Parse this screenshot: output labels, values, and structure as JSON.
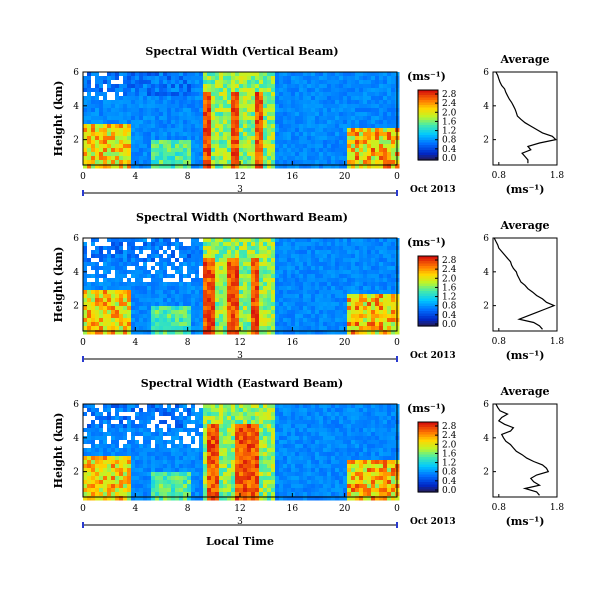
{
  "chart_data": [
    {
      "type": "heatmap",
      "title": "Spectral Width (Vertical Beam)",
      "ylabel": "Height (km)",
      "y_ticks": [
        "6",
        "4",
        "2"
      ],
      "x_ticks": [
        "0",
        "4",
        "8",
        "12",
        "16",
        "20",
        "0"
      ],
      "xlim": [
        0,
        24
      ],
      "ylim": [
        0.5,
        6
      ],
      "day_marker": "3",
      "date_label": "Oct 2013",
      "colorbar_unit": "(ms⁻¹)",
      "colorbar_ticks": [
        "2.8",
        "2.4",
        "2.0",
        "1.6",
        "1.2",
        "0.8",
        "0.4",
        "0.0"
      ],
      "colorbar_range": [
        0,
        2.8
      ],
      "band_hours": [
        9.3,
        11.5,
        13.3
      ],
      "average_profile": {
        "title": "Average",
        "xlabel": "(ms⁻¹)",
        "x_ticks": [
          "0.8",
          "1.8"
        ],
        "xlim": [
          0.7,
          1.8
        ],
        "y_ticks": [
          "6",
          "4",
          "2"
        ],
        "ylim": [
          0.5,
          6
        ],
        "height": [
          6.0,
          5.8,
          5.6,
          5.4,
          5.2,
          5.0,
          4.8,
          4.6,
          4.4,
          4.2,
          4.0,
          3.8,
          3.6,
          3.4,
          3.2,
          3.0,
          2.8,
          2.6,
          2.4,
          2.2,
          2.0,
          1.8,
          1.6,
          1.4,
          1.2,
          1.0,
          0.8,
          0.6
        ],
        "value": [
          0.75,
          0.78,
          0.8,
          0.82,
          0.85,
          0.9,
          0.92,
          0.95,
          0.98,
          1.02,
          1.05,
          1.08,
          1.1,
          1.12,
          1.18,
          1.25,
          1.35,
          1.45,
          1.55,
          1.72,
          1.78,
          1.5,
          1.3,
          1.35,
          1.2,
          1.25,
          1.3,
          1.3
        ]
      }
    },
    {
      "type": "heatmap",
      "title": "Spectral Width (Northward Beam)",
      "ylabel": "Height (km)",
      "y_ticks": [
        "6",
        "4",
        "2"
      ],
      "x_ticks": [
        "0",
        "4",
        "8",
        "12",
        "16",
        "20",
        "0"
      ],
      "xlim": [
        0,
        24
      ],
      "ylim": [
        0.5,
        6
      ],
      "day_marker": "3",
      "date_label": "Oct 2013",
      "colorbar_unit": "(ms⁻¹)",
      "colorbar_ticks": [
        "2.8",
        "2.4",
        "2.0",
        "1.6",
        "1.2",
        "0.8",
        "0.4",
        "0.0"
      ],
      "colorbar_range": [
        0,
        2.8
      ],
      "band_hours": [
        9.5,
        11.3,
        13.0
      ],
      "average_profile": {
        "title": "Average",
        "xlabel": "(ms⁻¹)",
        "x_ticks": [
          "0.8",
          "1.8"
        ],
        "xlim": [
          0.7,
          1.8
        ],
        "y_ticks": [
          "6",
          "4",
          "2"
        ],
        "ylim": [
          0.5,
          6
        ],
        "height": [
          6.0,
          5.8,
          5.6,
          5.4,
          5.2,
          5.0,
          4.8,
          4.6,
          4.4,
          4.2,
          4.0,
          3.8,
          3.6,
          3.4,
          3.2,
          3.0,
          2.8,
          2.6,
          2.4,
          2.2,
          2.0,
          1.8,
          1.6,
          1.4,
          1.2,
          1.0,
          0.8,
          0.6
        ],
        "value": [
          0.72,
          0.75,
          0.78,
          0.8,
          0.85,
          0.9,
          0.95,
          1.0,
          1.02,
          1.05,
          1.1,
          1.12,
          1.15,
          1.18,
          1.25,
          1.3,
          1.38,
          1.45,
          1.55,
          1.62,
          1.75,
          1.6,
          1.45,
          1.3,
          1.15,
          1.4,
          1.5,
          1.55
        ]
      }
    },
    {
      "type": "heatmap",
      "title": "Spectral Width (Eastward Beam)",
      "ylabel": "Height (km)",
      "y_ticks": [
        "6",
        "4",
        "2"
      ],
      "x_ticks": [
        "0",
        "4",
        "8",
        "12",
        "16",
        "20",
        "0"
      ],
      "xlim": [
        0,
        24
      ],
      "ylim": [
        0.5,
        6
      ],
      "day_marker": "3",
      "date_label": "Oct 2013",
      "xlabel": "Local Time",
      "colorbar_unit": "(ms⁻¹)",
      "colorbar_ticks": [
        "2.8",
        "2.4",
        "2.0",
        "1.6",
        "1.2",
        "0.8",
        "0.4",
        "0.0"
      ],
      "colorbar_range": [
        0,
        2.8
      ],
      "band_hours": [
        9.8,
        12.0,
        12.8
      ],
      "average_profile": {
        "title": "Average",
        "xlabel": "(ms⁻¹)",
        "x_ticks": [
          "0.8",
          "1.8"
        ],
        "xlim": [
          0.7,
          1.8
        ],
        "y_ticks": [
          "6",
          "4",
          "2"
        ],
        "ylim": [
          0.5,
          6
        ],
        "height": [
          6.0,
          5.8,
          5.6,
          5.4,
          5.2,
          5.0,
          4.8,
          4.6,
          4.4,
          4.2,
          4.0,
          3.8,
          3.6,
          3.4,
          3.2,
          3.0,
          2.8,
          2.6,
          2.4,
          2.2,
          2.0,
          1.8,
          1.6,
          1.4,
          1.2,
          1.0,
          0.8,
          0.6
        ],
        "value": [
          0.75,
          0.78,
          0.82,
          0.95,
          0.85,
          0.8,
          0.9,
          1.05,
          1.0,
          0.85,
          0.88,
          0.92,
          1.0,
          1.05,
          1.1,
          1.2,
          1.28,
          1.4,
          1.55,
          1.62,
          1.65,
          1.45,
          1.35,
          1.4,
          1.5,
          1.25,
          1.45,
          1.5
        ]
      }
    }
  ]
}
